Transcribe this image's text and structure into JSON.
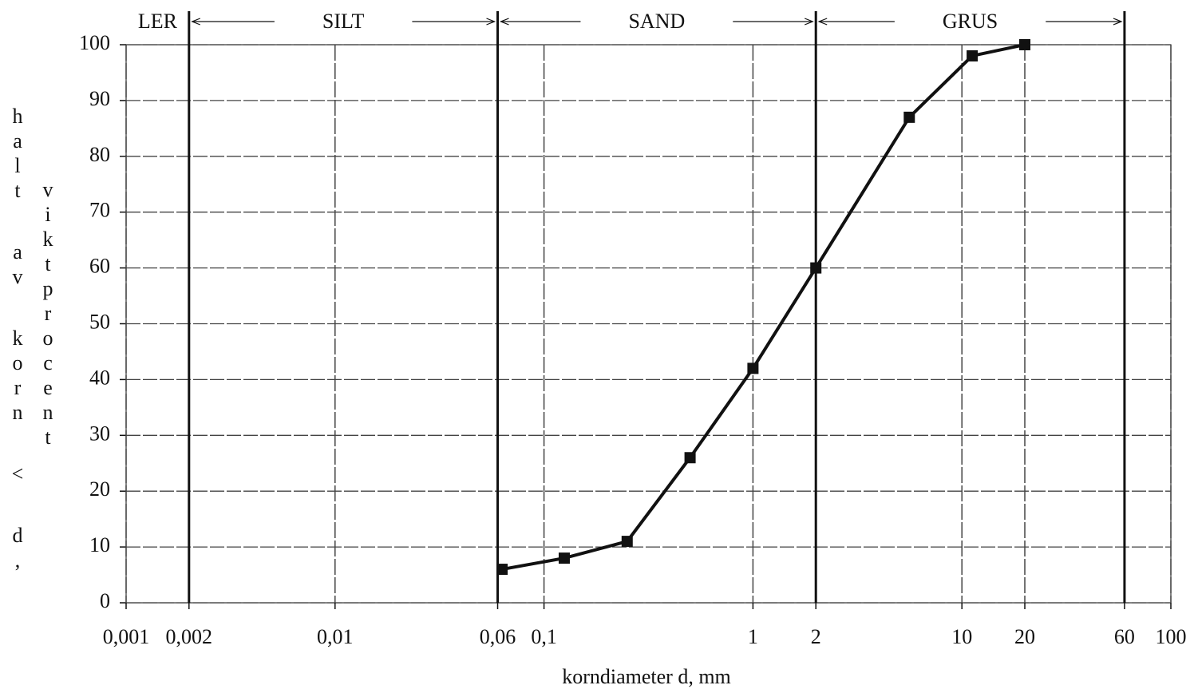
{
  "chart_data": {
    "type": "line",
    "xlabel": "korndiameter d, mm",
    "ylabel": "halt av korn < d,",
    "ylabel2": "viktprocent",
    "xscale": "log",
    "xlim": [
      0.001,
      100
    ],
    "xticks": [
      {
        "value": 0.001,
        "label": "0,001"
      },
      {
        "value": 0.002,
        "label": "0,002"
      },
      {
        "value": 0.01,
        "label": "0,01"
      },
      {
        "value": 0.06,
        "label": "0,06"
      },
      {
        "value": 0.1,
        "label": "0,1"
      },
      1,
      2,
      10,
      20,
      60,
      100
    ],
    "ylim": [
      0,
      100
    ],
    "yticks": [
      0,
      10,
      20,
      30,
      40,
      50,
      60,
      70,
      80,
      90,
      100
    ],
    "grid": true,
    "color": "#111111",
    "zones": [
      {
        "label": "LER",
        "from": 0.001,
        "to": 0.002
      },
      {
        "label": "SILT",
        "from": 0.002,
        "to": 0.06
      },
      {
        "label": "SAND",
        "from": 0.06,
        "to": 2
      },
      {
        "label": "GRUS",
        "from": 2,
        "to": 60
      }
    ],
    "x": [
      0.063,
      0.125,
      0.25,
      0.5,
      1,
      2,
      5.6,
      11.2,
      20
    ],
    "values": [
      6,
      8,
      11,
      26,
      42,
      60,
      87,
      98,
      100
    ]
  }
}
